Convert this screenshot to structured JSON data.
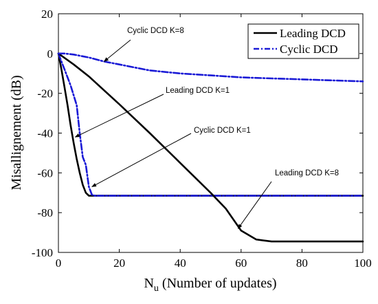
{
  "chart_data": {
    "type": "line",
    "title": "",
    "xlabel_main": "N",
    "xlabel_sub": "u",
    "xlabel_rest": " (Number of updates)",
    "ylabel": "Misallignement (dB)",
    "xlim": [
      0,
      100
    ],
    "ylim": [
      -100,
      20
    ],
    "xticks": [
      0,
      20,
      40,
      60,
      80,
      100
    ],
    "yticks": [
      20,
      0,
      -20,
      -40,
      -60,
      -80,
      -100
    ],
    "grid": false,
    "legend_position": "top-right",
    "legend": [
      {
        "label": "Leading DCD",
        "color": "#000000",
        "style": "solid"
      },
      {
        "label": "Cyclic DCD",
        "color": "#1a1ad6",
        "style": "dashdot"
      }
    ],
    "series": [
      {
        "id": "leading-k1",
        "legend_ref": 0,
        "color": "#000000",
        "style": "solid",
        "x": [
          0,
          1,
          2,
          3,
          4,
          5,
          6,
          7,
          8,
          9,
          10,
          11,
          100
        ],
        "y": [
          0,
          -8,
          -17,
          -26,
          -36,
          -45,
          -53,
          -60,
          -66,
          -70,
          -71.5,
          -71.5,
          -71.5
        ]
      },
      {
        "id": "cyclic-k1",
        "legend_ref": 1,
        "color": "#1a1ad6",
        "style": "dashdot",
        "x": [
          0,
          1,
          2,
          3,
          4,
          5,
          6,
          7,
          8,
          9,
          10,
          11,
          12,
          100
        ],
        "y": [
          0,
          -4,
          -8,
          -12,
          -16,
          -21,
          -26,
          -40,
          -52,
          -56,
          -67,
          -71,
          -71.5,
          -71.5
        ]
      },
      {
        "id": "leading-k8",
        "legend_ref": 0,
        "color": "#000000",
        "style": "solid",
        "x": [
          0,
          5,
          10,
          20,
          30,
          40,
          50,
          55,
          60,
          65,
          70,
          80,
          100
        ],
        "y": [
          0,
          -5.5,
          -11.5,
          -25.5,
          -40,
          -55,
          -70,
          -78,
          -89,
          -93.5,
          -94.5,
          -94.5,
          -94.5
        ]
      },
      {
        "id": "cyclic-k8",
        "legend_ref": 1,
        "color": "#1a1ad6",
        "style": "dashdot",
        "x": [
          0,
          2,
          5,
          10,
          15,
          20,
          25,
          30,
          40,
          50,
          60,
          70,
          80,
          90,
          100
        ],
        "y": [
          0,
          0,
          -0.5,
          -2,
          -4,
          -5.5,
          -7,
          -8.5,
          -10,
          -11,
          -12,
          -12.5,
          -13,
          -13.5,
          -14
        ]
      }
    ],
    "annotations": [
      {
        "id": "cyclic-k8",
        "text": "Cyclic DCD K=8",
        "target": [
          15,
          -4
        ]
      },
      {
        "id": "leading-k1",
        "text": "Leading DCD K=1",
        "target": [
          5.5,
          -42
        ]
      },
      {
        "id": "cyclic-k1",
        "text": "Cyclic DCD K=1",
        "target": [
          11,
          -67
        ]
      },
      {
        "id": "leading-k8",
        "text": "Leading DCD K=8",
        "target": [
          59,
          -88
        ]
      }
    ]
  }
}
